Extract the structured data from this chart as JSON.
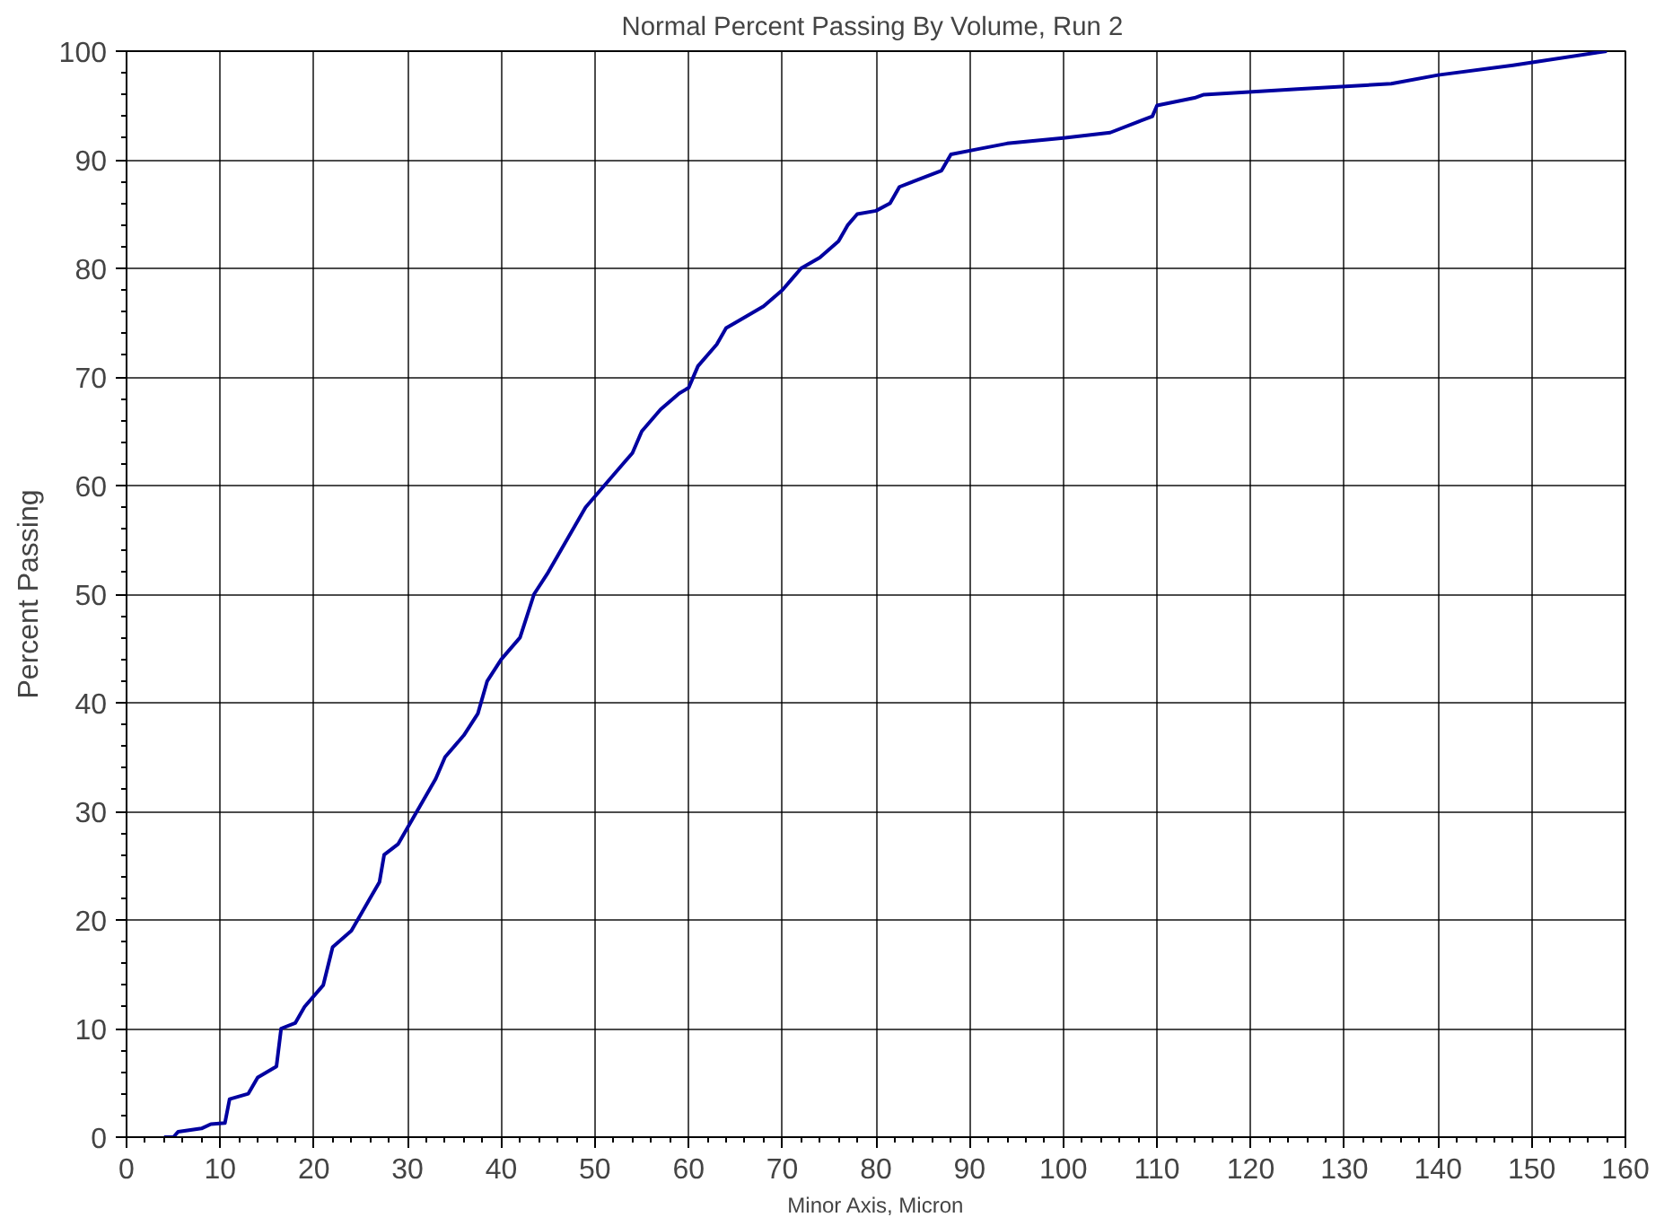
{
  "chart_data": {
    "type": "line",
    "title": "Normal  Percent Passing By Volume, Run 2",
    "xlabel": "Minor Axis, Micron",
    "ylabel": "Percent Passing",
    "x": [
      4,
      5,
      5.5,
      8,
      9,
      10.5,
      11,
      13,
      14,
      16,
      16.5,
      18,
      19,
      21,
      22,
      24,
      26,
      27,
      27.5,
      29,
      31,
      33,
      34,
      36,
      37.5,
      38.5,
      40,
      42,
      43.5,
      45,
      47,
      49,
      51,
      53,
      54,
      55,
      57,
      59,
      60,
      61,
      63,
      64,
      65,
      68,
      70,
      71,
      72,
      74,
      76,
      77,
      78,
      80,
      81.5,
      82.5,
      84,
      87,
      88,
      91,
      94,
      100,
      105,
      108,
      109.5,
      110,
      114,
      115,
      125,
      135,
      140,
      148,
      158
    ],
    "series": [
      {
        "color": "#0000a0",
        "values": [
          0,
          0,
          0.5,
          0.8,
          1.2,
          1.3,
          3.5,
          4,
          5.5,
          6.5,
          10,
          10.5,
          12,
          14,
          17.5,
          19,
          22,
          23.5,
          26,
          27,
          30,
          33,
          35,
          37,
          39,
          42,
          44,
          46,
          50,
          52,
          55,
          58,
          60,
          62,
          63,
          65,
          67,
          68.5,
          69,
          71,
          73,
          74.5,
          75,
          76.5,
          78,
          79,
          80,
          81,
          82.5,
          84,
          85,
          85.3,
          86,
          87.5,
          88,
          89,
          90.5,
          91,
          91.5,
          92,
          92.5,
          93.5,
          94,
          95,
          95.7,
          96,
          96.5,
          97,
          97.8,
          98.7,
          100
        ]
      }
    ],
    "xlim": [
      0,
      160
    ],
    "ylim": [
      0,
      100
    ],
    "xticks": [
      0,
      10,
      20,
      30,
      40,
      50,
      60,
      70,
      80,
      90,
      100,
      110,
      120,
      130,
      140,
      150,
      160
    ],
    "yticks": [
      0,
      10,
      20,
      30,
      40,
      50,
      60,
      70,
      80,
      90,
      100
    ],
    "grid": true,
    "marker": "none",
    "line_style": "solid"
  }
}
